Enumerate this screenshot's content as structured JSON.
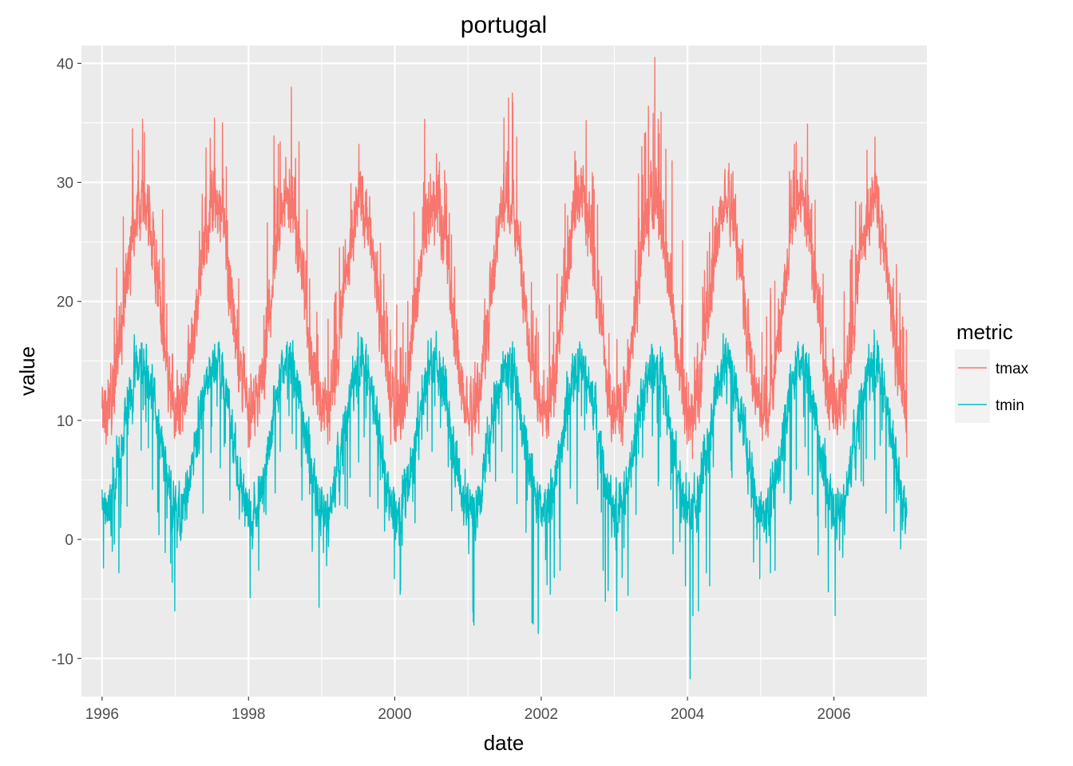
{
  "chart_data": {
    "type": "line",
    "title": "portugal",
    "xlabel": "date",
    "ylabel": "value",
    "x_range": [
      "1995-09-20",
      "2007-04-10"
    ],
    "ylim": [
      -13.2,
      41.5
    ],
    "x_ticks": [
      {
        "label": "1996",
        "date": "1996-01-01"
      },
      {
        "label": "1998",
        "date": "1998-01-01"
      },
      {
        "label": "2000",
        "date": "2000-01-01"
      },
      {
        "label": "2002",
        "date": "2002-01-01"
      },
      {
        "label": "2004",
        "date": "2004-01-01"
      },
      {
        "label": "2006",
        "date": "2006-01-01"
      }
    ],
    "y_ticks": [
      -10,
      0,
      10,
      20,
      30,
      40
    ],
    "grid": true,
    "legend": {
      "title": "metric",
      "position": "right"
    },
    "sampling": "daily values, one point per day from 1996-01-01 to 2006-12-31 (values in data units, date = start + index days)",
    "start_date": "1996-01-01",
    "series": [
      {
        "name": "tmax",
        "color": "#F8766D",
        "values": []
      },
      {
        "name": "tmin",
        "color": "#00BFC4",
        "values": []
      }
    ],
    "approx_annual_extremes": {
      "tmax_summer_peaks": [
        36.5,
        35.5,
        38.7,
        36.0,
        36.3,
        36.8,
        36.2,
        39.6,
        36.5,
        36.0,
        37.3
      ],
      "tmin_winter_lows": [
        -6.2,
        -5.1,
        -5.0,
        -5.3,
        -2.8,
        -10.8,
        -7.8,
        -5.5,
        -9.6,
        -7.9,
        -5.1
      ]
    }
  }
}
